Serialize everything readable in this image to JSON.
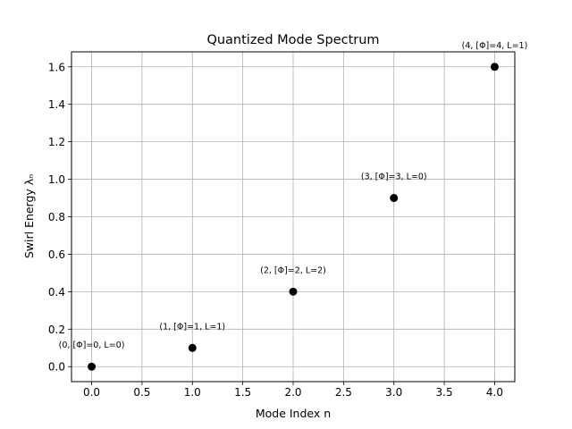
{
  "chart_data": {
    "type": "scatter",
    "title": "Quantized Mode Spectrum",
    "xlabel": "Mode Index n",
    "ylabel": "Swirl Energy λₙ",
    "xlim": [
      -0.2,
      4.2
    ],
    "ylim": [
      -0.08,
      1.68
    ],
    "xticks": [
      0.0,
      0.5,
      1.0,
      1.5,
      2.0,
      2.5,
      3.0,
      3.5,
      4.0
    ],
    "yticks": [
      0.0,
      0.2,
      0.4,
      0.6,
      0.8,
      1.0,
      1.2,
      1.4,
      1.6
    ],
    "xtick_labels": [
      "0.0",
      "0.5",
      "1.0",
      "1.5",
      "2.0",
      "2.5",
      "3.0",
      "3.5",
      "4.0"
    ],
    "ytick_labels": [
      "0.0",
      "0.2",
      "0.4",
      "0.6",
      "0.8",
      "1.0",
      "1.2",
      "1.4",
      "1.6"
    ],
    "grid": true,
    "marker_color": "#000000",
    "points": [
      {
        "x": 0,
        "y": 0.0,
        "label": "(0, [Φ]=0, L=0)"
      },
      {
        "x": 1,
        "y": 0.1,
        "label": "(1, [Φ]=1, L=1)"
      },
      {
        "x": 2,
        "y": 0.4,
        "label": "(2, [Φ]=2, L=2)"
      },
      {
        "x": 3,
        "y": 0.9,
        "label": "(3, [Φ]=3, L=0)"
      },
      {
        "x": 4,
        "y": 1.6,
        "label": "(4, [Φ]=4, L=1)"
      }
    ]
  }
}
